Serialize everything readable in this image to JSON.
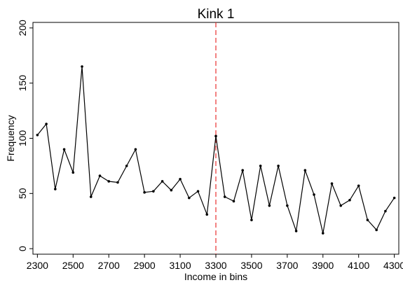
{
  "chart_data": {
    "type": "line",
    "title": "Kink 1",
    "xlabel": "Income in bins",
    "ylabel": "Frequency",
    "xlim": [
      2275,
      4325
    ],
    "ylim": [
      -5,
      205
    ],
    "xticks": [
      2300,
      2500,
      2700,
      2900,
      3100,
      3300,
      3500,
      3700,
      3900,
      4100,
      4300
    ],
    "xtick_labels": [
      "2300",
      "2500",
      "2700",
      "2900",
      "3100",
      "3300",
      "3500",
      "3700",
      "3900",
      "4100",
      "4300"
    ],
    "yticks": [
      0,
      50,
      100,
      150,
      200
    ],
    "ytick_labels": [
      "0",
      "50",
      "100",
      "150",
      "200"
    ],
    "grid": false,
    "kink_line": {
      "x": 3300,
      "color": "#e8302e",
      "style": "dashed"
    },
    "series": [
      {
        "color": "#000000",
        "x": [
          2300,
          2350,
          2400,
          2450,
          2500,
          2550,
          2600,
          2650,
          2700,
          2750,
          2800,
          2850,
          2900,
          2950,
          3000,
          3050,
          3100,
          3150,
          3200,
          3250,
          3300,
          3350,
          3400,
          3450,
          3500,
          3550,
          3600,
          3650,
          3700,
          3750,
          3800,
          3850,
          3900,
          3950,
          4000,
          4050,
          4100,
          4150,
          4200,
          4250,
          4300
        ],
        "values": [
          103,
          113,
          54,
          90,
          69,
          165,
          47,
          66,
          61,
          60,
          75,
          90,
          51,
          52,
          61,
          53,
          63,
          46,
          52,
          31,
          102,
          47,
          43,
          71,
          26,
          75,
          39,
          75,
          39,
          16,
          71,
          49,
          14,
          59,
          39,
          44,
          57,
          26,
          17,
          34,
          46
        ]
      }
    ]
  }
}
